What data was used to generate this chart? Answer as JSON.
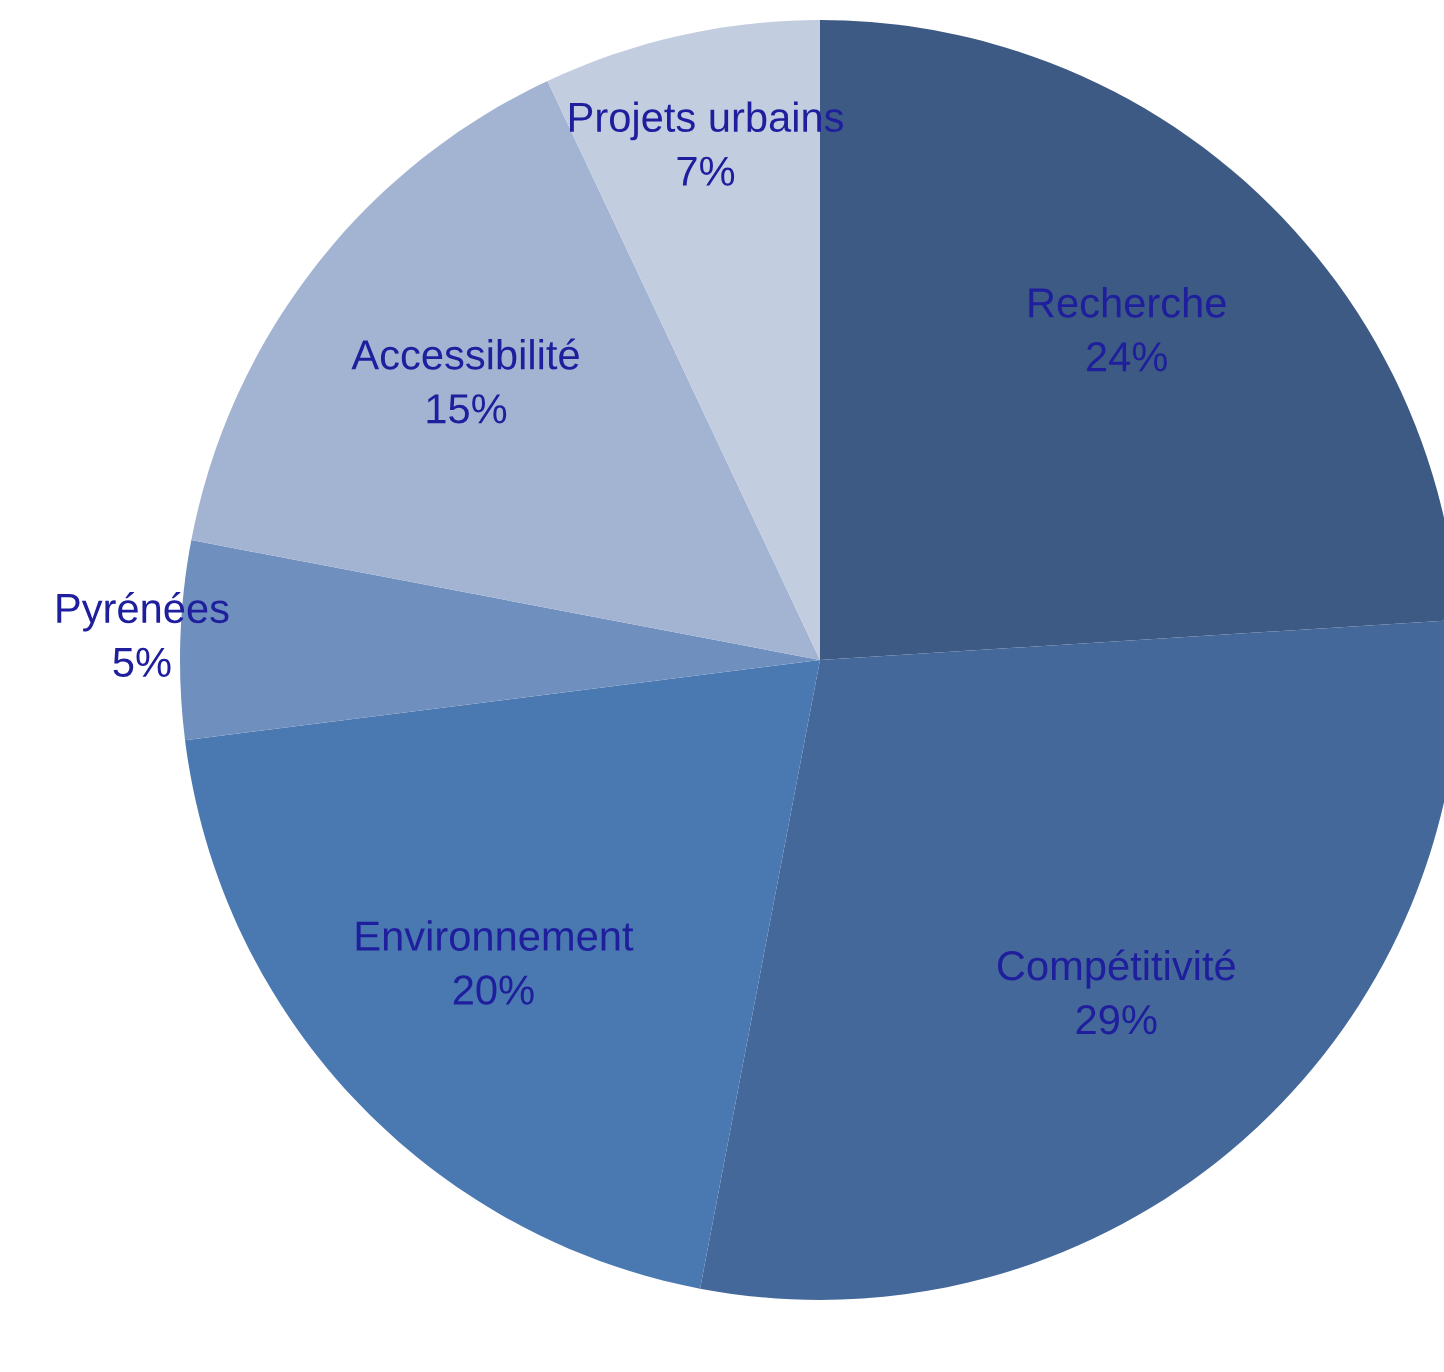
{
  "chart_data": {
    "type": "pie",
    "categories": [
      "Recherche",
      "Compétitivité",
      "Environnement",
      "Pyrénées",
      "Accessibilité",
      "Projets urbains"
    ],
    "values": [
      24,
      29,
      20,
      5,
      15,
      7
    ],
    "colors": [
      "#3d5a84",
      "#44689a",
      "#4a78b0",
      "#6f8fbf",
      "#a3b4d3",
      "#c3cde0"
    ],
    "value_labels": [
      "24%",
      "29%",
      "20%",
      "5%",
      "15%",
      "7%"
    ]
  }
}
